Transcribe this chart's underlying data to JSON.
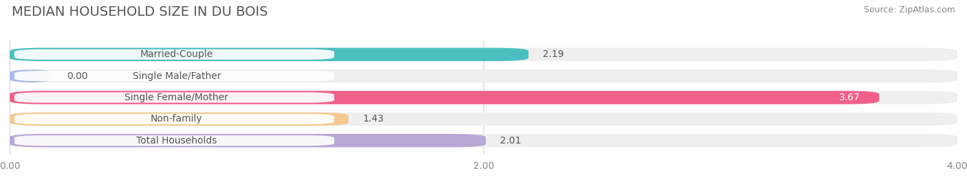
{
  "title": "MEDIAN HOUSEHOLD SIZE IN DU BOIS",
  "source": "Source: ZipAtlas.com",
  "categories": [
    "Married-Couple",
    "Single Male/Father",
    "Single Female/Mother",
    "Non-family",
    "Total Households"
  ],
  "values": [
    2.19,
    0.0,
    3.67,
    1.43,
    2.01
  ],
  "bar_colors": [
    "#4bbfbf",
    "#a8bce8",
    "#f0608a",
    "#f5c990",
    "#b8a8d8"
  ],
  "bar_bg_color": "#efefef",
  "xlim": [
    0,
    4.0
  ],
  "xticks": [
    0.0,
    2.0,
    4.0
  ],
  "xtick_labels": [
    "0.00",
    "2.00",
    "4.00"
  ],
  "title_fontsize": 14,
  "label_fontsize": 10,
  "value_fontsize": 10,
  "source_fontsize": 9,
  "background_color": "#ffffff",
  "bar_height": 0.62,
  "bar_gap": 0.38,
  "label_box_color": "#ffffff",
  "label_text_color": "#555555",
  "value_text_color": "#555555",
  "value_text_color_inside": "#ffffff"
}
